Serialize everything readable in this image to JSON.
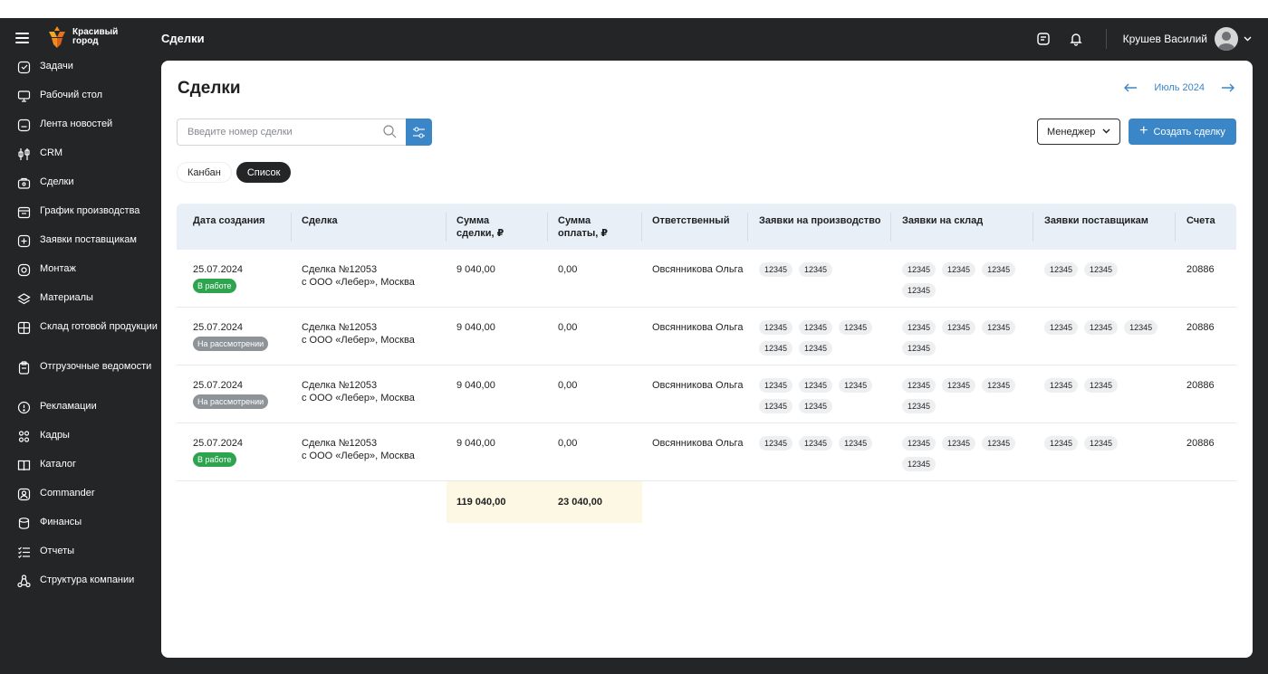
{
  "header": {
    "logo_text": "Красивый город",
    "page_name": "Сделки",
    "user_name": "Крушев Василий"
  },
  "sidebar": {
    "items": [
      {
        "label": "Задачи",
        "icon": "tasks-icon"
      },
      {
        "label": "Рабочий стол",
        "icon": "desktop-icon"
      },
      {
        "label": "Лента новостей",
        "icon": "news-icon"
      },
      {
        "label": "CRM",
        "icon": "crm-icon"
      },
      {
        "label": "Сделки",
        "icon": "deals-icon"
      },
      {
        "label": "График производства",
        "icon": "calendar-icon"
      },
      {
        "label": "Заявки поставщикам",
        "icon": "plus-box-icon"
      },
      {
        "label": "Монтаж",
        "icon": "install-icon"
      },
      {
        "label": "Материалы",
        "icon": "layers-icon"
      },
      {
        "label": "Склад готовой продукции",
        "icon": "warehouse-icon"
      },
      {
        "label": "Отгрузочные ведомости",
        "icon": "clipboard-icon"
      },
      {
        "label": "Рекламации",
        "icon": "alert-icon"
      },
      {
        "label": "Кадры",
        "icon": "people-icon"
      },
      {
        "label": "Каталог",
        "icon": "book-icon"
      },
      {
        "label": "Commander",
        "icon": "commander-icon"
      },
      {
        "label": "Финансы",
        "icon": "finance-icon"
      },
      {
        "label": "Отчеты",
        "icon": "list-icon"
      },
      {
        "label": "Структура компании",
        "icon": "structure-icon"
      }
    ]
  },
  "main": {
    "title": "Сделки",
    "month": "Июль 2024",
    "search_placeholder": "Введите номер сделки",
    "manager_label": "Менеджер",
    "create_label": "Создать сделку",
    "view_kanban": "Канбан",
    "view_list": "Список"
  },
  "table": {
    "headers": [
      "Дата создания",
      "Сделка",
      "Сумма сделки, ₽",
      "Сумма оплаты, ₽",
      "Ответственный",
      "Заявки на производство",
      "Заявки на склад",
      "Заявки поставщикам",
      "Счета"
    ],
    "rows": [
      {
        "date": "25.07.2024",
        "status": "В работе",
        "status_color": "#2ea44f",
        "deal": "Сделка №12053",
        "client": "с ООО «Лебер», Москва",
        "sum": "9 040,00",
        "paid": "0,00",
        "owner": "Овсянникова Ольга",
        "production": [
          "12345",
          "12345"
        ],
        "stock": [
          "12345",
          "12345",
          "12345",
          "12345"
        ],
        "suppliers": [
          "12345",
          "12345"
        ],
        "invoice": "20886"
      },
      {
        "date": "25.07.2024",
        "status": "На рассмотрении",
        "status_color": "#8e9398",
        "deal": "Сделка №12053",
        "client": "с ООО «Лебер», Москва",
        "sum": "9 040,00",
        "paid": "0,00",
        "owner": "Овсянникова Ольга",
        "production": [
          "12345",
          "12345",
          "12345",
          "12345",
          "12345"
        ],
        "stock": [
          "12345",
          "12345",
          "12345",
          "12345"
        ],
        "suppliers": [
          "12345",
          "12345",
          "12345"
        ],
        "invoice": "20886"
      },
      {
        "date": "25.07.2024",
        "status": "На рассмотрении",
        "status_color": "#8e9398",
        "deal": "Сделка №12053",
        "client": "с ООО «Лебер», Москва",
        "sum": "9 040,00",
        "paid": "0,00",
        "owner": "Овсянникова Ольга",
        "production": [
          "12345",
          "12345",
          "12345",
          "12345",
          "12345"
        ],
        "stock": [
          "12345",
          "12345",
          "12345",
          "12345"
        ],
        "suppliers": [
          "12345",
          "12345"
        ],
        "invoice": "20886"
      },
      {
        "date": "25.07.2024",
        "status": "В работе",
        "status_color": "#2ea44f",
        "deal": "Сделка №12053",
        "client": "с ООО «Лебер», Москва",
        "sum": "9 040,00",
        "paid": "0,00",
        "owner": "Овсянникова Ольга",
        "production": [
          "12345",
          "12345",
          "12345"
        ],
        "stock": [
          "12345",
          "12345",
          "12345",
          "12345"
        ],
        "suppliers": [
          "12345",
          "12345"
        ],
        "invoice": "20886"
      }
    ],
    "total_sum": "119 040,00",
    "total_paid": "23 040,00"
  }
}
